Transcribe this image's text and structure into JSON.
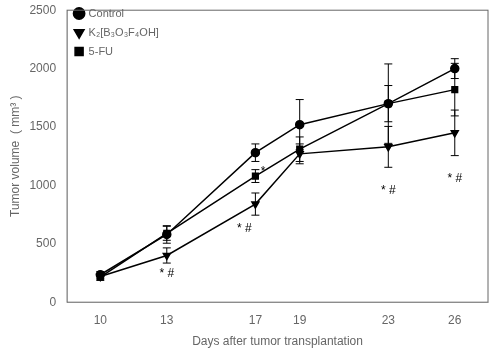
{
  "chart_data": {
    "type": "line",
    "xlabel": "Days after tumor transplantation",
    "ylabel": "Tumor volume  ( mm³ )",
    "x": [
      10,
      13,
      17,
      19,
      23,
      26
    ],
    "series": [
      {
        "name": "Control",
        "color": "#000000",
        "marker": "circle",
        "line_style": "solid",
        "values": [
          235,
          580,
          1280,
          1520,
          1700,
          2000
        ],
        "errors": [
          28,
          75,
          75,
          215,
          340,
          85
        ]
      },
      {
        "name": "K₂[B₃O₃F₄OH]",
        "color": "#000000",
        "marker": "triangle_down",
        "line_style": "solid",
        "values": [
          220,
          400,
          840,
          1270,
          1330,
          1450
        ],
        "errors": [
          22,
          65,
          95,
          85,
          175,
          195
        ]
      },
      {
        "name": "5-FU",
        "color": "#000000",
        "marker": "square",
        "line_style": "solid",
        "values": [
          215,
          590,
          1080,
          1310,
          1700,
          1820
        ],
        "errors": [
          28,
          60,
          55,
          105,
          155,
          225
        ]
      }
    ],
    "xlim": [
      8.5,
      27.5
    ],
    "xticks": [
      10,
      13,
      17,
      19,
      23,
      26
    ],
    "ylim": [
      0,
      2500
    ],
    "yticks": [
      0,
      500,
      1000,
      1500,
      2000,
      2500
    ],
    "grid": false,
    "legend": "upper left",
    "annotations": [
      {
        "x": 13.0,
        "y": 295,
        "text": "* #"
      },
      {
        "x": 17.35,
        "y": 1165,
        "text": "*"
      },
      {
        "x": 16.5,
        "y": 680,
        "text": "* #"
      },
      {
        "x": 23.0,
        "y": 1010,
        "text": "* #"
      },
      {
        "x": 26.0,
        "y": 1110,
        "text": "* #"
      }
    ]
  }
}
